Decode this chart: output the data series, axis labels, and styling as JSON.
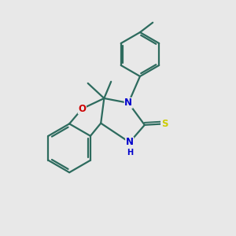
{
  "bg_color": "#e8e8e8",
  "bond_color": "#2d6b5e",
  "o_color": "#cc0000",
  "n_color": "#0000cc",
  "s_color": "#cccc00",
  "line_width": 1.6,
  "fig_size": [
    3.0,
    3.0
  ],
  "dpi": 100,
  "xlim": [
    0,
    10
  ],
  "ylim": [
    0,
    10
  ]
}
